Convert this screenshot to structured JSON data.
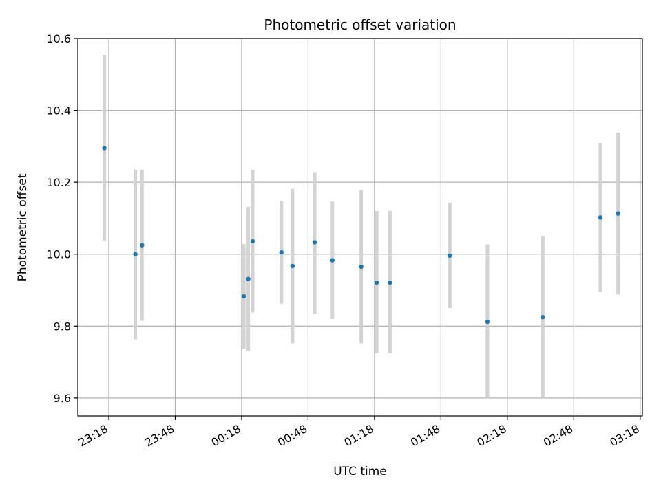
{
  "chart_data": {
    "type": "scatter",
    "title": "Photometric offset variation",
    "xlabel": "UTC time",
    "ylabel": "Photometric offset",
    "grid": true,
    "xlim": [
      "23:04",
      "03:19"
    ],
    "ylim": [
      9.55,
      10.6
    ],
    "x_ticks": [
      "23:18",
      "23:48",
      "00:18",
      "00:48",
      "01:18",
      "01:48",
      "02:18",
      "02:48",
      "03:18"
    ],
    "y_ticks": [
      "9.6",
      "9.8",
      "10.0",
      "10.2",
      "10.4",
      "10.6"
    ],
    "marker_color": "#1f77b4",
    "errorbar_color": "#d3d3d3",
    "points": [
      {
        "x": "23:16",
        "y": 10.295,
        "ylow": 10.038,
        "yhigh": 10.554
      },
      {
        "x": "23:30",
        "y": 10.0,
        "ylow": 9.763,
        "yhigh": 10.235
      },
      {
        "x": "23:33",
        "y": 10.025,
        "ylow": 9.815,
        "yhigh": 10.235
      },
      {
        "x": "00:19",
        "y": 9.883,
        "ylow": 9.737,
        "yhigh": 10.028
      },
      {
        "x": "00:21",
        "y": 9.931,
        "ylow": 9.731,
        "yhigh": 10.132
      },
      {
        "x": "00:23",
        "y": 10.036,
        "ylow": 9.838,
        "yhigh": 10.234
      },
      {
        "x": "00:36",
        "y": 10.005,
        "ylow": 9.862,
        "yhigh": 10.148
      },
      {
        "x": "00:41",
        "y": 9.967,
        "ylow": 9.752,
        "yhigh": 10.182
      },
      {
        "x": "00:51",
        "y": 10.033,
        "ylow": 9.835,
        "yhigh": 10.228
      },
      {
        "x": "00:59",
        "y": 9.983,
        "ylow": 9.82,
        "yhigh": 10.146
      },
      {
        "x": "01:12",
        "y": 9.965,
        "ylow": 9.752,
        "yhigh": 10.178
      },
      {
        "x": "01:19",
        "y": 9.921,
        "ylow": 9.724,
        "yhigh": 10.12
      },
      {
        "x": "01:25",
        "y": 9.921,
        "ylow": 9.724,
        "yhigh": 10.12
      },
      {
        "x": "01:52",
        "y": 9.996,
        "ylow": 9.85,
        "yhigh": 10.142
      },
      {
        "x": "02:09",
        "y": 9.812,
        "ylow": 9.6,
        "yhigh": 10.027
      },
      {
        "x": "02:34",
        "y": 9.825,
        "ylow": 9.6,
        "yhigh": 10.051
      },
      {
        "x": "03:00",
        "y": 10.102,
        "ylow": 9.896,
        "yhigh": 10.309
      },
      {
        "x": "03:08",
        "y": 10.113,
        "ylow": 9.888,
        "yhigh": 10.338
      }
    ]
  }
}
